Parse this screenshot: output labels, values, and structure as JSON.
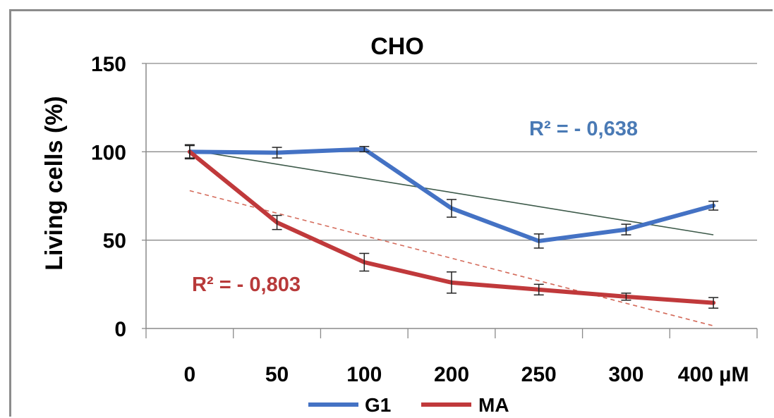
{
  "chart_data": {
    "type": "line",
    "title": "CHO",
    "ylabel": "Living cells (%)",
    "xlabel": "",
    "categories": [
      "0",
      "50",
      "100",
      "200",
      "250",
      "300",
      "400 µM"
    ],
    "ylim": [
      0,
      150
    ],
    "yticks": [
      0,
      50,
      100,
      150
    ],
    "grid": true,
    "legend": "bottom",
    "series": [
      {
        "name": "G1",
        "color": "#4472c4",
        "values": [
          100,
          99.5,
          101.5,
          68,
          49.5,
          56,
          69.5
        ],
        "errors": [
          3.5,
          3,
          1.5,
          5,
          4,
          3,
          2.5
        ],
        "trendline": {
          "start": 101,
          "end": 53,
          "color": "#3d5a4a",
          "style": "solid"
        },
        "r2": "R² = - 0,638"
      },
      {
        "name": "MA",
        "color": "#c0393b",
        "values": [
          100,
          60,
          37.5,
          26,
          22,
          18,
          14.5
        ],
        "errors": [
          4,
          4,
          5,
          6,
          3,
          2,
          3
        ],
        "trendline": {
          "start": 78,
          "end": 1.5,
          "color": "#d46a5a",
          "style": "dashed"
        },
        "r2": "R² = - 0,803"
      }
    ]
  }
}
